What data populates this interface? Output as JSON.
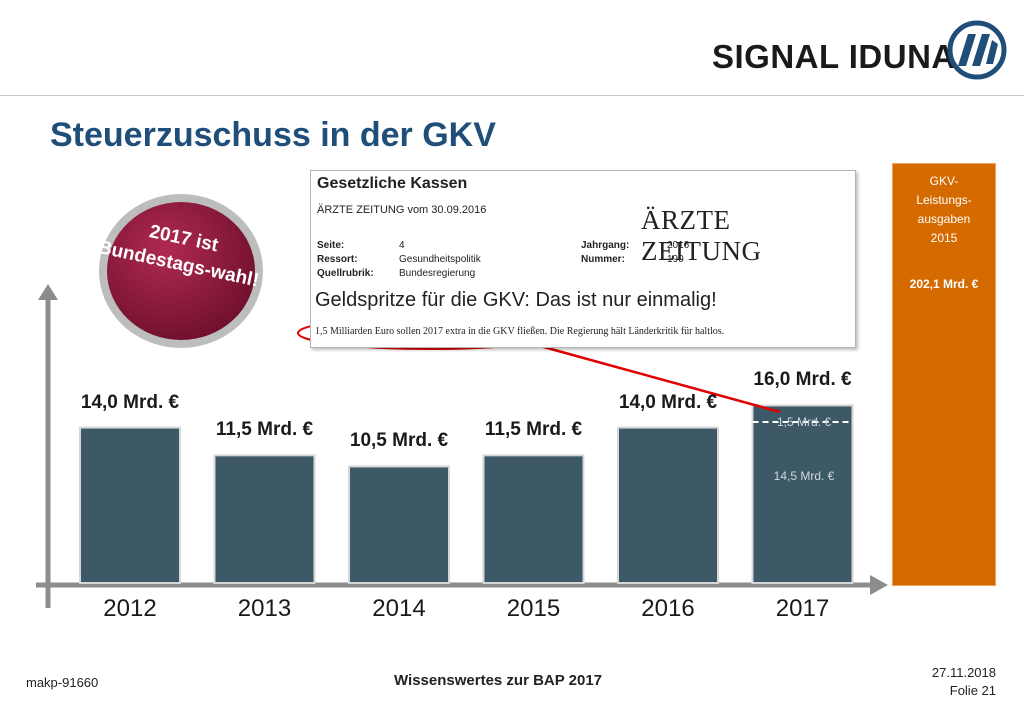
{
  "header": {
    "brand": "SIGNAL IDUNA",
    "title": "Steuerzuschuss in der GKV"
  },
  "badge": {
    "text": "2017 ist Bundestags-wahl!"
  },
  "clipping": {
    "heading": "Gesetzliche Kassen",
    "source": "ÄRZTE ZEITUNG vom 30.09.2016",
    "logo_text": "ÄRZTE ZEITUNG",
    "seite_label": "Seite:",
    "seite_value": "4",
    "ressort_label": "Ressort:",
    "ressort_value": "Gesundheitspolitik",
    "quell_label": "Quellrubrik:",
    "quell_value": "Bundesregierung",
    "jahrgang_label": "Jahrgang:",
    "jahrgang_value": "2016",
    "nummer_label": "Nummer:",
    "nummer_value": "190",
    "headline": "Geldspritze für die GKV: Das ist nur einmalig!",
    "subline": "1,5 Milliarden Euro sollen 2017 extra in die GKV fließen. Die Regierung hält Länderkritik für haltlos."
  },
  "side_box": {
    "title_lines": [
      "GKV-",
      "Leistungs-",
      "ausgaben",
      "2015"
    ],
    "value": "202,1 Mrd. €"
  },
  "chart_data": {
    "type": "bar",
    "title": "Steuerzuschuss in der GKV",
    "categories": [
      "2012",
      "2013",
      "2014",
      "2015",
      "2016",
      "2017"
    ],
    "values": [
      14.0,
      11.5,
      10.5,
      11.5,
      14.0,
      16.0
    ],
    "value_labels": [
      "14,0 Mrd. €",
      "11,5 Mrd. €",
      "10,5 Mrd. €",
      "11,5 Mrd. €",
      "14,0 Mrd. €",
      "16,0 Mrd. €"
    ],
    "stack_2017": {
      "bottom": {
        "value": 14.5,
        "label": "14,5 Mrd. €"
      },
      "top": {
        "value": 1.5,
        "label": "1,5 Mrd. €"
      }
    },
    "ylim": [
      0,
      16.0
    ],
    "grid": false,
    "colors": {
      "bar": "#3d5967",
      "bar_border": "#d7d7d7",
      "axis": "#8c8c8c",
      "orange_box": "#d46a00",
      "badge": "#8b1a3c",
      "annotation": "#e00000"
    }
  },
  "footer": {
    "id": "makp-91660",
    "center": "Wissenswertes zur BAP 2017",
    "date": "27.11.2018",
    "slide": "Folie 21"
  }
}
